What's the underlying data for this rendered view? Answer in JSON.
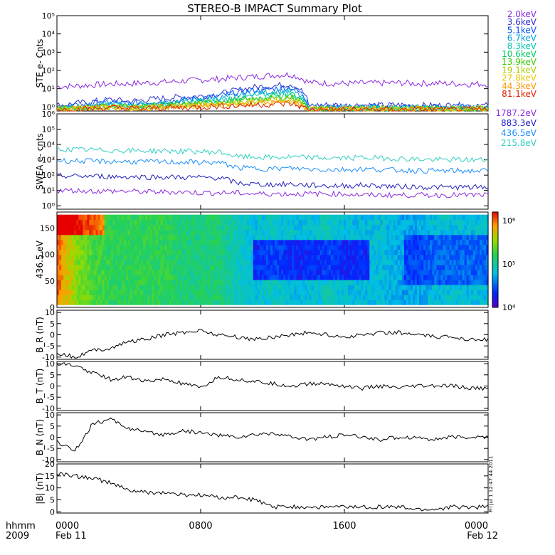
{
  "title": "STEREO-B IMPACT Summary Plot",
  "footer": {
    "left_line1": "hhmm",
    "left_line2": "2009",
    "date_start": "Feb 11",
    "date_end": "Feb 12",
    "timestamp": "Fri Jul 1 12:47:44 2011"
  },
  "chart_data": [
    {
      "type": "line",
      "name": "ste",
      "ylabel": "STE e- Cnts",
      "yscale": "log",
      "ylim": [
        0.6,
        100000
      ],
      "yticks": [
        1,
        10,
        100,
        1000,
        10000,
        100000
      ],
      "ytick_labels": [
        "10⁰",
        "10¹",
        "10²",
        "10³",
        "10⁴",
        "10⁵"
      ],
      "series": [
        {
          "name": "2.0keV",
          "color": "#8a2be2",
          "values": [
            13,
            14,
            16,
            18,
            19,
            21,
            23,
            26,
            30,
            33,
            40,
            45,
            55,
            60,
            22,
            20,
            19,
            20,
            20,
            21,
            19,
            20,
            19,
            18,
            18
          ]
        },
        {
          "name": "3.6keV",
          "color": "#3030d0",
          "values": [
            1.2,
            1.5,
            2,
            2.5,
            2,
            2.5,
            3,
            3.5,
            4,
            5,
            8,
            12,
            14,
            18,
            1.2,
            1.3,
            1.2,
            1.3,
            1.2,
            1.3,
            1.2,
            1.2,
            1.2,
            1.2,
            1.2
          ]
        },
        {
          "name": "5.1keV",
          "color": "#0050ff",
          "values": [
            1,
            1.1,
            1.5,
            1.8,
            1.5,
            1.8,
            2,
            2.5,
            3,
            4,
            6,
            8,
            10,
            12,
            1,
            1,
            1,
            1,
            1,
            1,
            1,
            1,
            1,
            1,
            1
          ]
        },
        {
          "name": "6.7keV",
          "color": "#00a0e0",
          "values": [
            0.9,
            1,
            1.2,
            1.5,
            1.2,
            1.5,
            1.6,
            2,
            2.4,
            3,
            4,
            6,
            7,
            8,
            0.9,
            0.9,
            0.9,
            0.9,
            0.9,
            0.9,
            0.9,
            0.9,
            0.9,
            0.9,
            0.9
          ]
        },
        {
          "name": "8.3keV",
          "color": "#00c8b4",
          "values": [
            0.8,
            0.9,
            1,
            1.3,
            1.1,
            1.3,
            1.4,
            1.7,
            2,
            2.5,
            3,
            4,
            5,
            6,
            0.8,
            0.8,
            0.8,
            0.8,
            0.8,
            0.8,
            0.8,
            0.8,
            0.8,
            0.8,
            0.8
          ]
        },
        {
          "name": "10.6keV",
          "color": "#00cc66",
          "values": [
            0.8,
            0.9,
            1,
            1.2,
            1,
            1.2,
            1.3,
            1.5,
            1.8,
            2,
            2.5,
            3,
            4,
            4.5,
            0.8,
            0.8,
            0.8,
            0.8,
            0.8,
            0.8,
            0.8,
            0.8,
            0.8,
            0.8,
            0.8
          ]
        },
        {
          "name": "13.9keV",
          "color": "#33cc00",
          "values": [
            0.8,
            0.8,
            1,
            1.1,
            1,
            1.1,
            1.2,
            1.3,
            1.6,
            1.8,
            2,
            2.5,
            3,
            3.5,
            0.8,
            0.8,
            0.8,
            0.8,
            0.8,
            0.8,
            0.8,
            0.8,
            0.8,
            0.8,
            0.8
          ]
        },
        {
          "name": "19.1keV",
          "color": "#aacc00",
          "values": [
            0.8,
            0.8,
            1,
            1,
            0.9,
            1,
            1.1,
            1.2,
            1.4,
            1.5,
            1.8,
            2,
            2.5,
            3,
            0.8,
            0.8,
            0.8,
            0.8,
            0.8,
            0.8,
            0.8,
            0.8,
            0.8,
            0.8,
            0.8
          ]
        },
        {
          "name": "27.8keV",
          "color": "#e8c800",
          "values": [
            0.8,
            0.8,
            0.9,
            1,
            0.9,
            1,
            1,
            1.1,
            1.2,
            1.3,
            1.5,
            1.8,
            2,
            2.2,
            0.8,
            0.8,
            0.8,
            0.8,
            0.8,
            0.8,
            0.8,
            0.8,
            0.8,
            0.8,
            0.8
          ]
        },
        {
          "name": "44.3keV",
          "color": "#ff9900",
          "values": [
            0.7,
            0.8,
            0.9,
            1,
            0.8,
            0.9,
            1,
            1,
            1.1,
            1.2,
            1.3,
            1.5,
            1.7,
            1.9,
            0.7,
            0.7,
            0.7,
            0.7,
            0.7,
            0.7,
            0.7,
            0.7,
            0.7,
            0.7,
            0.7
          ]
        },
        {
          "name": "81.1keV",
          "color": "#dd2200",
          "values": [
            0.7,
            0.7,
            0.8,
            0.9,
            0.8,
            0.8,
            0.9,
            0.9,
            1,
            1.1,
            1.2,
            1.3,
            1.4,
            1.5,
            0.7,
            0.7,
            0.7,
            0.7,
            0.7,
            0.7,
            0.7,
            0.7,
            0.7,
            0.7,
            0.7
          ]
        }
      ]
    },
    {
      "type": "line",
      "name": "swea",
      "ylabel": "SWEA e- cnts",
      "yscale": "log",
      "ylim": [
        0.6,
        1000000
      ],
      "yticks": [
        1,
        10,
        100,
        1000,
        10000,
        100000,
        1000000
      ],
      "ytick_labels": [
        "10⁰",
        "10¹",
        "10²",
        "10³",
        "10⁴",
        "10⁵",
        "10⁶"
      ],
      "series": [
        {
          "name": "1787.2eV",
          "color": "#8a2be2",
          "values": [
            10,
            10,
            9,
            9,
            9,
            8,
            8,
            8,
            7,
            7,
            7,
            6,
            6,
            6,
            6,
            6,
            6,
            5,
            5,
            5,
            5,
            5,
            5,
            5,
            5
          ]
        },
        {
          "name": "883.3eV",
          "color": "#2020c0",
          "values": [
            90,
            85,
            85,
            80,
            78,
            76,
            75,
            72,
            70,
            68,
            30,
            26,
            24,
            26,
            22,
            20,
            20,
            22,
            20,
            18,
            17,
            16,
            16,
            16,
            16
          ]
        },
        {
          "name": "436.5eV",
          "color": "#1e90ff",
          "values": [
            900,
            850,
            800,
            780,
            760,
            740,
            720,
            700,
            680,
            650,
            300,
            280,
            260,
            280,
            250,
            230,
            230,
            250,
            230,
            210,
            200,
            190,
            190,
            190,
            190
          ]
        },
        {
          "name": "215.8eV",
          "color": "#30d0c0",
          "values": [
            5000,
            4600,
            4400,
            4200,
            4000,
            3900,
            3800,
            3600,
            3400,
            3200,
            1600,
            1500,
            1400,
            1500,
            1400,
            1300,
            1300,
            1400,
            1300,
            1200,
            1100,
            1000,
            1000,
            1000,
            1000
          ]
        }
      ]
    },
    {
      "type": "heatmap",
      "name": "pad",
      "ylabel": "436.5 eV",
      "ylim": [
        0,
        180
      ],
      "yticks": [
        0,
        50,
        100,
        150
      ],
      "colorbar_ticks": [
        "10⁴",
        "10⁵",
        "10⁶"
      ],
      "colorbar_range_log10": [
        4,
        6.2
      ],
      "values_log10_by_time": [
        6.0,
        5.5,
        5.3,
        5.2,
        5.2,
        5.2,
        5.2,
        5.1,
        5.1,
        5.1,
        4.9,
        4.8,
        4.9,
        4.8,
        4.8,
        4.9,
        4.8,
        4.8,
        4.8,
        4.7,
        4.7,
        4.8,
        4.8,
        4.8,
        4.8
      ]
    },
    {
      "type": "line",
      "name": "br",
      "ylabel": "B_R (nT)",
      "ylim": [
        -11,
        11
      ],
      "yticks": [
        -10,
        -5,
        0,
        5,
        10
      ],
      "values": [
        -8,
        -10,
        -7,
        -6,
        -3,
        -2,
        0,
        1,
        2,
        0,
        -1,
        -2,
        -1,
        0,
        1,
        0,
        -1,
        0,
        1,
        1,
        0,
        -1,
        -1,
        -2,
        -2
      ]
    },
    {
      "type": "line",
      "name": "bt",
      "ylabel": "B_T (nT)",
      "ylim": [
        -11,
        11
      ],
      "yticks": [
        -10,
        -5,
        0,
        5,
        10
      ],
      "values": [
        10,
        9,
        6,
        3,
        4,
        2,
        3,
        1,
        -1,
        4,
        3,
        2,
        1,
        0,
        1,
        1,
        0,
        -1,
        0,
        -1,
        0,
        0,
        0,
        -1,
        -1
      ]
    },
    {
      "type": "line",
      "name": "bn",
      "ylabel": "B_N (nT)",
      "ylim": [
        -11,
        11
      ],
      "yticks": [
        -10,
        -5,
        0,
        5,
        10
      ],
      "values": [
        -2,
        -6,
        6,
        8,
        4,
        2,
        1,
        3,
        2,
        1,
        0,
        1,
        2,
        0,
        -1,
        0,
        1,
        0,
        -1,
        0,
        0,
        -1,
        0,
        0,
        0
      ]
    },
    {
      "type": "line",
      "name": "babs",
      "ylabel": "|B| (nT)",
      "ylim": [
        -0.5,
        20
      ],
      "yticks": [
        0,
        5,
        10,
        15,
        20
      ],
      "values": [
        16,
        15,
        14,
        12,
        9,
        8,
        8,
        7,
        7,
        6,
        6,
        5,
        2,
        2,
        2,
        2,
        2,
        2,
        2,
        2,
        1,
        1,
        2,
        2,
        2
      ]
    }
  ],
  "xaxis": {
    "ticks": [
      "0000",
      "0800",
      "1600",
      "0000"
    ],
    "tick_fractions": [
      0,
      0.3333,
      0.6667,
      1
    ]
  }
}
